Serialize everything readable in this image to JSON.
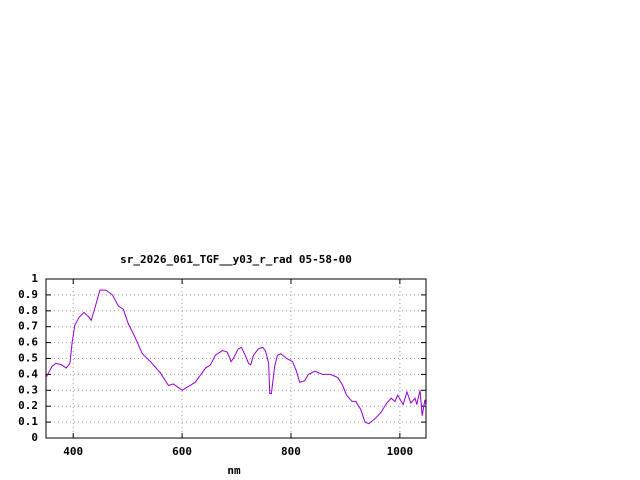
{
  "chart_data": {
    "type": "line",
    "title": "sr_2026_061_TGF__y03_r_rad 05-58-00",
    "xlabel": "nm",
    "x": [
      350,
      361,
      368,
      379,
      387,
      394,
      398,
      403,
      411,
      420,
      429,
      433,
      440,
      449,
      460,
      472,
      483,
      492,
      501,
      514,
      527,
      542,
      560,
      575,
      584,
      600,
      624,
      643,
      652,
      661,
      674,
      683,
      690,
      694,
      703,
      709,
      716,
      722,
      726,
      731,
      740,
      748,
      753,
      759,
      761,
      764,
      770,
      775,
      781,
      792,
      803,
      810,
      816,
      825,
      832,
      844,
      858,
      873,
      886,
      895,
      902,
      912,
      919,
      928,
      936,
      943,
      954,
      965,
      976,
      984,
      991,
      996,
      1006,
      1013,
      1020,
      1028,
      1031,
      1037,
      1041,
      1046,
      1048
    ],
    "series": [
      {
        "color": "#9400d3",
        "values": [
          0.38,
          0.45,
          0.47,
          0.46,
          0.44,
          0.47,
          0.6,
          0.71,
          0.76,
          0.79,
          0.76,
          0.74,
          0.82,
          0.93,
          0.93,
          0.9,
          0.83,
          0.81,
          0.72,
          0.63,
          0.53,
          0.48,
          0.41,
          0.33,
          0.34,
          0.3,
          0.35,
          0.44,
          0.46,
          0.52,
          0.55,
          0.54,
          0.48,
          0.5,
          0.56,
          0.57,
          0.52,
          0.47,
          0.46,
          0.52,
          0.56,
          0.57,
          0.55,
          0.47,
          0.28,
          0.28,
          0.45,
          0.52,
          0.53,
          0.5,
          0.48,
          0.42,
          0.35,
          0.36,
          0.4,
          0.42,
          0.4,
          0.4,
          0.38,
          0.33,
          0.27,
          0.23,
          0.23,
          0.18,
          0.1,
          0.09,
          0.12,
          0.16,
          0.22,
          0.25,
          0.23,
          0.27,
          0.21,
          0.29,
          0.22,
          0.25,
          0.21,
          0.3,
          0.14,
          0.24,
          0.2
        ]
      }
    ],
    "xlim": [
      350,
      1048
    ],
    "ylim": [
      0,
      1
    ],
    "xticks": [
      400,
      600,
      800,
      1000
    ],
    "yticks": [
      0,
      0.1,
      0.2,
      0.3,
      0.4,
      0.5,
      0.6,
      0.7,
      0.8,
      0.9,
      1
    ],
    "grid": true
  }
}
